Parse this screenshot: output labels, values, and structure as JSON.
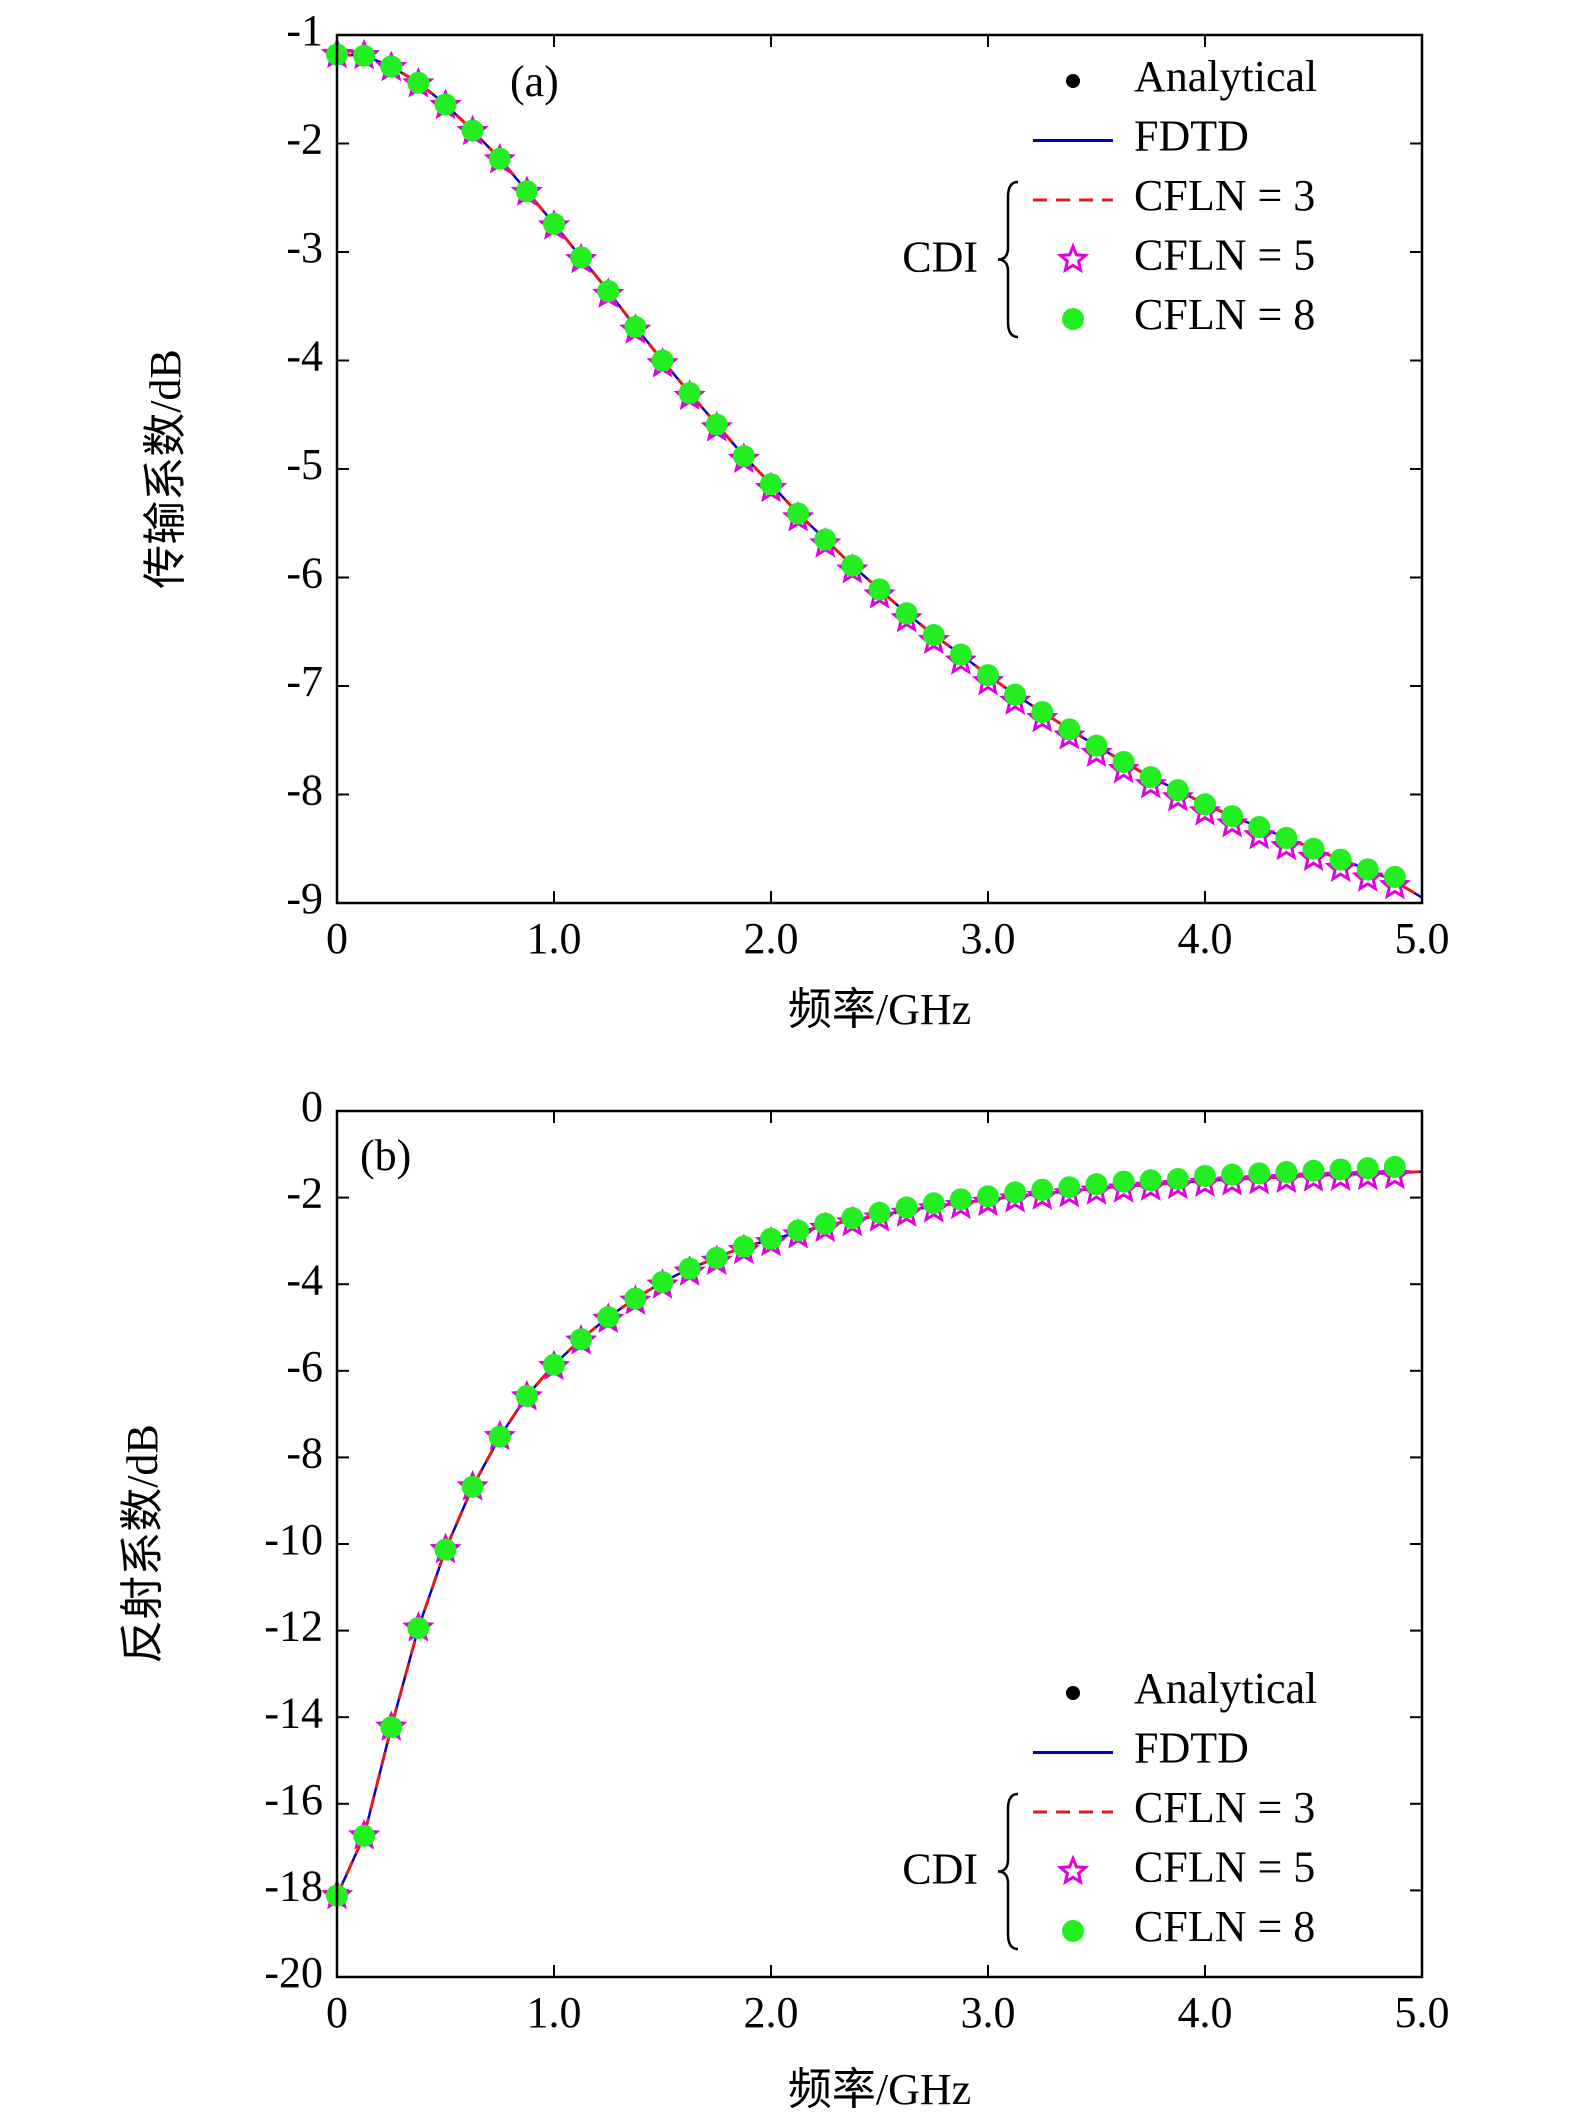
{
  "chart_data": [
    {
      "type": "line",
      "panel_label": "(a)",
      "xlabel": "频率/GHz",
      "ylabel": "传输系数/dB",
      "xlim": [
        0,
        5
      ],
      "xticks": [
        0,
        {
          "value": 1,
          "label": "1.0"
        },
        {
          "value": 2,
          "label": "2.0"
        },
        {
          "value": 3,
          "label": "3.0"
        },
        {
          "value": 4,
          "label": "4.0"
        },
        {
          "value": 5,
          "label": "5.0"
        }
      ],
      "ylim": [
        -9,
        -1
      ],
      "yticks": [
        -1,
        -2,
        -3,
        -4,
        -5,
        -6,
        -7,
        -8,
        -9
      ],
      "legend": "upper right",
      "legend_group": "CDI",
      "x": [
        0,
        0.125,
        0.25,
        0.375,
        0.5,
        0.625,
        0.75,
        0.875,
        1,
        1.125,
        1.25,
        1.375,
        1.5,
        1.625,
        1.75,
        1.875,
        2,
        2.125,
        2.25,
        2.375,
        2.5,
        2.625,
        2.75,
        2.875,
        3,
        3.125,
        3.25,
        3.375,
        3.5,
        3.625,
        3.75,
        3.875,
        4,
        4.125,
        4.25,
        4.375,
        4.5,
        4.625,
        4.75,
        4.875,
        5
      ],
      "series": [
        {
          "name": "Analytical",
          "color": "#000000",
          "style": "marker",
          "marker": "dot",
          "values": [
            -1.18,
            -1.19,
            -1.29,
            -1.44,
            -1.64,
            -1.88,
            -2.14,
            -2.44,
            -2.74,
            -3.05,
            -3.36,
            -3.69,
            -4.0,
            -4.3,
            -4.59,
            -4.88,
            -5.14,
            -5.41,
            -5.65,
            -5.89,
            -6.11,
            -6.33,
            -6.53,
            -6.71,
            -6.9,
            -7.08,
            -7.24,
            -7.4,
            -7.55,
            -7.7,
            -7.84,
            -7.96,
            -8.09,
            -8.2,
            -8.3,
            -8.4,
            -8.5,
            -8.6,
            -8.69,
            -8.76,
            null
          ]
        },
        {
          "name": "FDTD",
          "color": "#0000cc",
          "style": "solid",
          "values": [
            -1.18,
            -1.19,
            -1.29,
            -1.44,
            -1.64,
            -1.88,
            -2.14,
            -2.44,
            -2.74,
            -3.05,
            -3.36,
            -3.69,
            -4.0,
            -4.3,
            -4.59,
            -4.88,
            -5.14,
            -5.41,
            -5.65,
            -5.89,
            -6.11,
            -6.33,
            -6.53,
            -6.71,
            -6.9,
            -7.08,
            -7.24,
            -7.4,
            -7.55,
            -7.7,
            -7.84,
            -7.96,
            -8.09,
            -8.2,
            -8.3,
            -8.4,
            -8.5,
            -8.6,
            -8.69,
            -8.8,
            -8.95
          ]
        },
        {
          "name": "CFLN = 3",
          "color": "#e31a1c",
          "style": "dashed",
          "values": [
            -1.18,
            -1.19,
            -1.29,
            -1.44,
            -1.64,
            -1.88,
            -2.14,
            -2.44,
            -2.74,
            -3.05,
            -3.36,
            -3.69,
            -4.0,
            -4.3,
            -4.59,
            -4.88,
            -5.14,
            -5.41,
            -5.65,
            -5.89,
            -6.11,
            -6.33,
            -6.53,
            -6.71,
            -6.9,
            -7.08,
            -7.24,
            -7.4,
            -7.55,
            -7.7,
            -7.84,
            -7.96,
            -8.09,
            -8.2,
            -8.3,
            -8.4,
            -8.5,
            -8.6,
            -8.69,
            -8.8,
            -8.95
          ]
        },
        {
          "name": "CFLN = 5",
          "color": "#e000e0",
          "style": "marker",
          "marker": "star",
          "values": [
            -1.18,
            -1.19,
            -1.3,
            -1.45,
            -1.65,
            -1.89,
            -2.15,
            -2.45,
            -2.76,
            -3.07,
            -3.39,
            -3.72,
            -4.03,
            -4.33,
            -4.62,
            -4.91,
            -5.18,
            -5.45,
            -5.69,
            -5.93,
            -6.16,
            -6.38,
            -6.58,
            -6.77,
            -6.96,
            -7.14,
            -7.3,
            -7.46,
            -7.62,
            -7.77,
            -7.91,
            -8.03,
            -8.16,
            -8.27,
            -8.38,
            -8.48,
            -8.58,
            -8.68,
            -8.77,
            -8.84,
            null
          ]
        },
        {
          "name": "CFLN = 8",
          "color": "#22ee22",
          "style": "marker",
          "marker": "dot",
          "values": [
            -1.18,
            -1.19,
            -1.29,
            -1.44,
            -1.64,
            -1.88,
            -2.14,
            -2.44,
            -2.74,
            -3.05,
            -3.36,
            -3.69,
            -4.0,
            -4.3,
            -4.59,
            -4.88,
            -5.14,
            -5.41,
            -5.65,
            -5.89,
            -6.11,
            -6.33,
            -6.53,
            -6.71,
            -6.9,
            -7.08,
            -7.24,
            -7.4,
            -7.55,
            -7.7,
            -7.84,
            -7.96,
            -8.09,
            -8.2,
            -8.3,
            -8.4,
            -8.5,
            -8.6,
            -8.69,
            -8.76,
            null
          ]
        }
      ]
    },
    {
      "type": "line",
      "panel_label": "(b)",
      "xlabel": "频率/GHz",
      "ylabel": "反射系数/dB",
      "xlim": [
        0,
        5
      ],
      "xticks": [
        0,
        {
          "value": 1,
          "label": "1.0"
        },
        {
          "value": 2,
          "label": "2.0"
        },
        {
          "value": 3,
          "label": "3.0"
        },
        {
          "value": 4,
          "label": "4.0"
        },
        {
          "value": 5,
          "label": "5.0"
        }
      ],
      "ylim": [
        -20,
        0
      ],
      "yticks": [
        0,
        -2,
        -4,
        -6,
        -8,
        -10,
        -12,
        -14,
        -16,
        -18,
        -20
      ],
      "legend": "lower right",
      "legend_group": "CDI",
      "x": [
        0,
        0.125,
        0.25,
        0.375,
        0.5,
        0.625,
        0.75,
        0.875,
        1,
        1.125,
        1.25,
        1.375,
        1.5,
        1.625,
        1.75,
        1.875,
        2,
        2.125,
        2.25,
        2.375,
        2.5,
        2.625,
        2.75,
        2.875,
        3,
        3.125,
        3.25,
        3.375,
        3.5,
        3.625,
        3.75,
        3.875,
        4,
        4.125,
        4.25,
        4.375,
        4.5,
        4.625,
        4.75,
        4.875,
        5
      ],
      "series": [
        {
          "name": "Analytical",
          "color": "#000000",
          "style": "marker",
          "marker": "dot",
          "values": [
            -18.12,
            -16.74,
            -14.23,
            -11.94,
            -10.13,
            -8.68,
            -7.52,
            -6.58,
            -5.86,
            -5.27,
            -4.76,
            -4.33,
            -3.95,
            -3.64,
            -3.39,
            -3.13,
            -2.95,
            -2.76,
            -2.6,
            -2.47,
            -2.35,
            -2.23,
            -2.13,
            -2.04,
            -1.97,
            -1.88,
            -1.82,
            -1.76,
            -1.69,
            -1.63,
            -1.6,
            -1.57,
            -1.5,
            -1.47,
            -1.44,
            -1.41,
            -1.38,
            -1.35,
            -1.32,
            -1.29,
            null
          ]
        },
        {
          "name": "FDTD",
          "color": "#0000cc",
          "style": "solid",
          "values": [
            -18.12,
            -16.74,
            -14.23,
            -11.94,
            -10.13,
            -8.68,
            -7.52,
            -6.58,
            -5.86,
            -5.27,
            -4.76,
            -4.33,
            -3.95,
            -3.64,
            -3.39,
            -3.13,
            -2.98,
            -2.8,
            -2.65,
            -2.52,
            -2.41,
            -2.3,
            -2.2,
            -2.12,
            -2.05,
            -1.97,
            -1.91,
            -1.85,
            -1.79,
            -1.74,
            -1.7,
            -1.66,
            -1.61,
            -1.58,
            -1.55,
            -1.52,
            -1.49,
            -1.47,
            -1.45,
            -1.43,
            -1.4
          ]
        },
        {
          "name": "CFLN = 3",
          "color": "#e31a1c",
          "style": "dashed",
          "values": [
            -18.12,
            -16.74,
            -14.23,
            -11.94,
            -10.13,
            -8.68,
            -7.52,
            -6.58,
            -5.86,
            -5.27,
            -4.76,
            -4.33,
            -3.95,
            -3.64,
            -3.39,
            -3.13,
            -2.98,
            -2.8,
            -2.65,
            -2.52,
            -2.41,
            -2.3,
            -2.2,
            -2.12,
            -2.05,
            -1.97,
            -1.91,
            -1.85,
            -1.79,
            -1.74,
            -1.7,
            -1.66,
            -1.61,
            -1.58,
            -1.55,
            -1.52,
            -1.49,
            -1.47,
            -1.45,
            -1.43,
            -1.4
          ]
        },
        {
          "name": "CFLN = 5",
          "color": "#e000e0",
          "style": "marker",
          "marker": "star",
          "values": [
            -18.12,
            -16.74,
            -14.23,
            -11.94,
            -10.13,
            -8.68,
            -7.52,
            -6.6,
            -5.9,
            -5.31,
            -4.81,
            -4.39,
            -4.02,
            -3.72,
            -3.47,
            -3.22,
            -3.04,
            -2.86,
            -2.71,
            -2.58,
            -2.47,
            -2.36,
            -2.26,
            -2.18,
            -2.11,
            -2.03,
            -1.97,
            -1.91,
            -1.85,
            -1.8,
            -1.76,
            -1.72,
            -1.67,
            -1.64,
            -1.61,
            -1.58,
            -1.55,
            -1.53,
            -1.51,
            -1.49,
            null
          ]
        },
        {
          "name": "CFLN = 8",
          "color": "#22ee22",
          "style": "marker",
          "marker": "dot",
          "values": [
            -18.12,
            -16.74,
            -14.23,
            -11.94,
            -10.13,
            -8.68,
            -7.52,
            -6.58,
            -5.86,
            -5.27,
            -4.76,
            -4.33,
            -3.95,
            -3.64,
            -3.39,
            -3.13,
            -2.95,
            -2.76,
            -2.6,
            -2.47,
            -2.35,
            -2.23,
            -2.13,
            -2.04,
            -1.97,
            -1.88,
            -1.82,
            -1.76,
            -1.69,
            -1.63,
            -1.6,
            -1.57,
            -1.5,
            -1.47,
            -1.44,
            -1.41,
            -1.38,
            -1.35,
            -1.32,
            -1.29,
            null
          ]
        }
      ]
    }
  ]
}
